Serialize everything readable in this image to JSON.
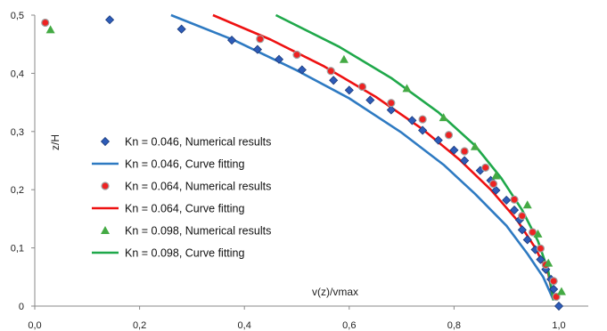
{
  "chart_data": {
    "type": "scatter",
    "title": "",
    "xlabel": "v(z)/vmax",
    "ylabel": "z/H",
    "xlim": [
      0,
      1.0
    ],
    "ylim": [
      0,
      0.5
    ],
    "x_ticks": [
      "0,0",
      "0,2",
      "0,4",
      "0,6",
      "0,8",
      "1,0"
    ],
    "y_ticks": [
      "0",
      "0,1",
      "0,2",
      "0,3",
      "0,4",
      "0,5"
    ],
    "grid": false,
    "legend_position": "left",
    "series": [
      {
        "name": "Kn = 0.046, Numerical results",
        "kind": "points",
        "marker": "diamond",
        "color": "#2e5cb8",
        "points": [
          [
            0.143,
            0.492
          ],
          [
            0.28,
            0.476
          ],
          [
            0.376,
            0.457
          ],
          [
            0.425,
            0.441
          ],
          [
            0.466,
            0.424
          ],
          [
            0.51,
            0.406
          ],
          [
            0.57,
            0.388
          ],
          [
            0.6,
            0.371
          ],
          [
            0.64,
            0.354
          ],
          [
            0.68,
            0.337
          ],
          [
            0.72,
            0.319
          ],
          [
            0.74,
            0.302
          ],
          [
            0.77,
            0.285
          ],
          [
            0.8,
            0.268
          ],
          [
            0.82,
            0.25
          ],
          [
            0.85,
            0.233
          ],
          [
            0.87,
            0.216
          ],
          [
            0.88,
            0.199
          ],
          [
            0.9,
            0.182
          ],
          [
            0.915,
            0.165
          ],
          [
            0.925,
            0.148
          ],
          [
            0.93,
            0.131
          ],
          [
            0.94,
            0.114
          ],
          [
            0.955,
            0.097
          ],
          [
            0.965,
            0.08
          ],
          [
            0.975,
            0.063
          ],
          [
            0.985,
            0.046
          ],
          [
            0.99,
            0.029
          ],
          [
            1.0,
            0.0
          ]
        ]
      },
      {
        "name": "Kn = 0.046, Curve fitting",
        "kind": "line",
        "color": "#2e7ac2",
        "points": [
          [
            0.26,
            0.5
          ],
          [
            0.38,
            0.457
          ],
          [
            0.5,
            0.405
          ],
          [
            0.6,
            0.357
          ],
          [
            0.7,
            0.298
          ],
          [
            0.78,
            0.243
          ],
          [
            0.84,
            0.193
          ],
          [
            0.9,
            0.138
          ],
          [
            0.94,
            0.09
          ],
          [
            0.97,
            0.05
          ],
          [
            0.99,
            0.01
          ]
        ]
      },
      {
        "name": "Kn = 0.064, Numerical results",
        "kind": "points",
        "marker": "circle",
        "color": "#ee2222",
        "points": [
          [
            0.02,
            0.487
          ],
          [
            0.43,
            0.459
          ],
          [
            0.5,
            0.432
          ],
          [
            0.565,
            0.404
          ],
          [
            0.625,
            0.377
          ],
          [
            0.68,
            0.349
          ],
          [
            0.74,
            0.321
          ],
          [
            0.79,
            0.294
          ],
          [
            0.82,
            0.266
          ],
          [
            0.86,
            0.238
          ],
          [
            0.875,
            0.21
          ],
          [
            0.915,
            0.183
          ],
          [
            0.93,
            0.155
          ],
          [
            0.95,
            0.127
          ],
          [
            0.965,
            0.099
          ],
          [
            0.975,
            0.071
          ],
          [
            0.99,
            0.043
          ],
          [
            0.995,
            0.016
          ]
        ]
      },
      {
        "name": "Kn = 0.064, Curve fitting",
        "kind": "line",
        "color": "#ee1111",
        "points": [
          [
            0.34,
            0.5
          ],
          [
            0.45,
            0.458
          ],
          [
            0.55,
            0.413
          ],
          [
            0.65,
            0.36
          ],
          [
            0.74,
            0.304
          ],
          [
            0.81,
            0.252
          ],
          [
            0.87,
            0.2
          ],
          [
            0.92,
            0.148
          ],
          [
            0.955,
            0.1
          ],
          [
            0.98,
            0.055
          ],
          [
            0.99,
            0.01
          ]
        ]
      },
      {
        "name": "Kn = 0.098, Numerical results",
        "kind": "points",
        "marker": "triangle",
        "color": "#44aa44",
        "points": [
          [
            0.03,
            0.475
          ],
          [
            0.59,
            0.424
          ],
          [
            0.71,
            0.374
          ],
          [
            0.78,
            0.324
          ],
          [
            0.84,
            0.274
          ],
          [
            0.88,
            0.224
          ],
          [
            0.94,
            0.174
          ],
          [
            0.96,
            0.124
          ],
          [
            0.98,
            0.074
          ],
          [
            1.005,
            0.025
          ]
        ]
      },
      {
        "name": "Kn = 0.098, Curve fitting",
        "kind": "line",
        "color": "#1fa84a",
        "points": [
          [
            0.46,
            0.5
          ],
          [
            0.58,
            0.446
          ],
          [
            0.68,
            0.392
          ],
          [
            0.77,
            0.333
          ],
          [
            0.84,
            0.276
          ],
          [
            0.89,
            0.22
          ],
          [
            0.93,
            0.165
          ],
          [
            0.96,
            0.112
          ],
          [
            0.98,
            0.06
          ],
          [
            0.99,
            0.01
          ]
        ]
      }
    ]
  }
}
